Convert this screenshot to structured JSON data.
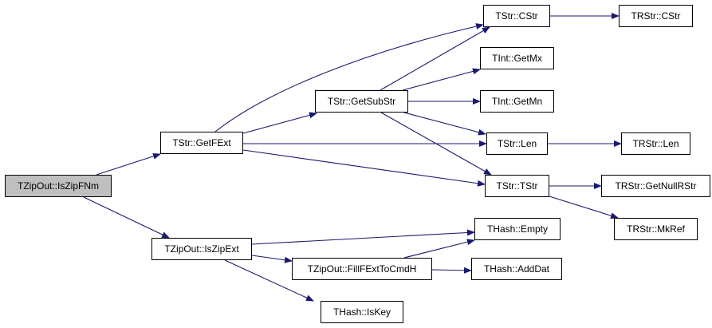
{
  "nodes": {
    "is_zip_fnm": "TZipOut::IsZipFNm",
    "get_f_ext": "TStr::GetFExt",
    "is_zip_ext": "TZipOut::IsZipExt",
    "get_sub_str": "TStr::GetSubStr",
    "tstr_cstr": "TStr::CStr",
    "trstr_cstr": "TRStr::CStr",
    "tint_get_mx": "TInt::GetMx",
    "tint_get_mn": "TInt::GetMn",
    "tstr_len": "TStr::Len",
    "trstr_len": "TRStr::Len",
    "tstr_tstr": "TStr::TStr",
    "trstr_get_null_rstr": "TRStr::GetNullRStr",
    "trstr_mk_ref": "TRStr::MkRef",
    "thash_empty": "THash::Empty",
    "fill_f_ext_to_cmd_h": "TZipOut::FillFExtToCmdH",
    "thash_add_dat": "THash::AddDat",
    "thash_is_key": "THash::IsKey"
  },
  "edges": [
    [
      "TZipOut::IsZipFNm",
      "TStr::GetFExt"
    ],
    [
      "TZipOut::IsZipFNm",
      "TZipOut::IsZipExt"
    ],
    [
      "TStr::GetFExt",
      "TStr::CStr"
    ],
    [
      "TStr::GetFExt",
      "TStr::GetSubStr"
    ],
    [
      "TStr::GetFExt",
      "TStr::Len"
    ],
    [
      "TStr::GetFExt",
      "TStr::TStr"
    ],
    [
      "TStr::GetSubStr",
      "TStr::CStr"
    ],
    [
      "TStr::GetSubStr",
      "TInt::GetMx"
    ],
    [
      "TStr::GetSubStr",
      "TInt::GetMn"
    ],
    [
      "TStr::GetSubStr",
      "TStr::Len"
    ],
    [
      "TStr::GetSubStr",
      "TStr::TStr"
    ],
    [
      "TStr::CStr",
      "TRStr::CStr"
    ],
    [
      "TStr::Len",
      "TRStr::Len"
    ],
    [
      "TStr::TStr",
      "TRStr::GetNullRStr"
    ],
    [
      "TStr::TStr",
      "TRStr::MkRef"
    ],
    [
      "TZipOut::IsZipExt",
      "THash::Empty"
    ],
    [
      "TZipOut::IsZipExt",
      "TZipOut::FillFExtToCmdH"
    ],
    [
      "TZipOut::IsZipExt",
      "THash::IsKey"
    ],
    [
      "TZipOut::FillFExtToCmdH",
      "THash::Empty"
    ],
    [
      "TZipOut::FillFExtToCmdH",
      "THash::AddDat"
    ]
  ],
  "colors": {
    "edge": "#191970",
    "root_fill": "#bfbfbf",
    "node_fill": "#ffffff"
  }
}
